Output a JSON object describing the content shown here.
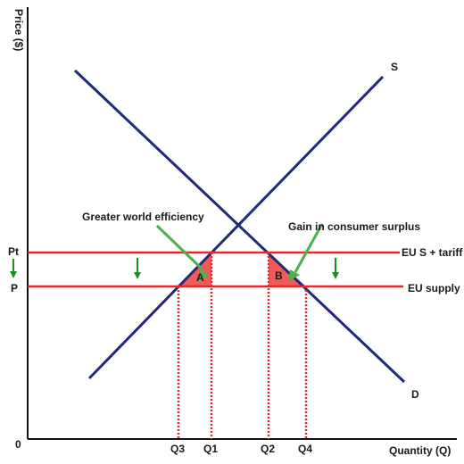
{
  "axes": {
    "y_label": "Price ($)",
    "x_label": "Quantity (Q)",
    "origin": "0"
  },
  "curves": {
    "supply_label": "S",
    "demand_label": "D",
    "line_color": "#1f2a7a"
  },
  "price_lines": {
    "upper_label": "Pt",
    "upper_line_label": "EU S + tariff",
    "lower_label": "P",
    "lower_line_label": "EU supply",
    "color": "#e8262c"
  },
  "quantities": [
    "Q3",
    "Q1",
    "Q2",
    "Q4"
  ],
  "areas": {
    "a_label": "A",
    "b_label": "B",
    "fill_color": "#f25a5a"
  },
  "annotations": {
    "efficiency": "Greater world efficiency",
    "consumer_surplus": "Gain in consumer surplus",
    "arrow_color": "#4caf50",
    "down_arrow_color": "#16941b"
  }
}
